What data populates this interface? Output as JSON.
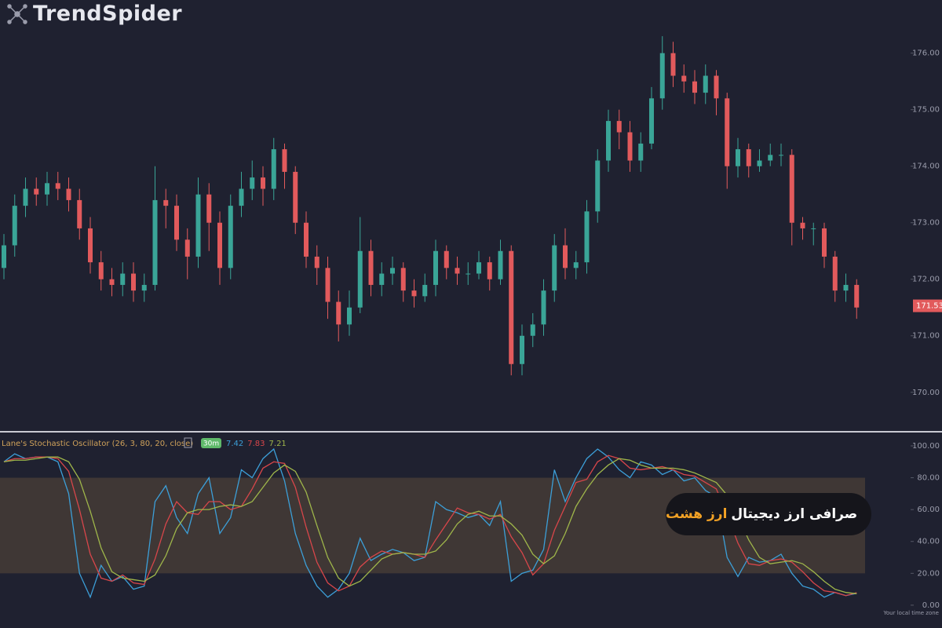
{
  "header": {
    "logo": "TrendSpider"
  },
  "banner": {
    "text": "صرافی ارز دیجیتال",
    "highlight": "ارز هشت"
  },
  "footer": {
    "note": "Your local time zone"
  },
  "chart_data": [
    {
      "type": "candlestick",
      "up_color": "#3aa597",
      "down_color": "#e25a5c",
      "open": [
        172.2,
        172.6,
        173.3,
        173.6,
        173.5,
        173.7,
        173.6,
        173.4,
        172.9,
        172.3,
        172.0,
        171.9,
        172.1,
        171.8,
        171.9,
        173.4,
        173.3,
        172.7,
        172.4,
        173.5,
        173.0,
        172.2,
        173.3,
        173.6,
        173.8,
        173.6,
        174.3,
        173.9,
        173.0,
        172.4,
        172.2,
        171.6,
        171.2,
        171.5,
        172.5,
        171.9,
        172.1,
        172.2,
        171.8,
        171.7,
        171.9,
        172.5,
        172.2,
        172.1,
        172.1,
        172.3,
        172.0,
        172.5,
        170.5,
        171.0,
        171.2,
        171.8,
        172.6,
        172.2,
        172.3,
        173.2,
        174.1,
        174.8,
        174.6,
        174.1,
        174.4,
        175.2,
        176.0,
        175.6,
        175.5,
        175.3,
        175.6,
        175.2,
        174.0,
        174.3,
        174.0,
        174.1,
        174.2,
        174.2,
        173.0,
        172.9,
        172.9,
        172.4,
        171.8,
        171.9
      ],
      "high": [
        172.8,
        173.5,
        173.8,
        173.8,
        173.9,
        173.9,
        173.8,
        173.6,
        173.1,
        172.5,
        172.2,
        172.3,
        172.3,
        172.1,
        174.0,
        173.6,
        173.5,
        172.9,
        173.8,
        173.7,
        173.2,
        173.5,
        173.9,
        174.1,
        174.0,
        174.5,
        174.4,
        174.0,
        173.2,
        172.6,
        172.4,
        171.8,
        171.8,
        173.1,
        172.7,
        172.3,
        172.4,
        172.3,
        172.0,
        172.1,
        172.7,
        172.6,
        172.4,
        172.3,
        172.5,
        172.4,
        172.7,
        172.6,
        171.2,
        171.4,
        172.0,
        172.8,
        172.9,
        172.5,
        173.4,
        174.3,
        175.0,
        175.0,
        174.8,
        174.6,
        175.4,
        176.3,
        176.2,
        175.8,
        175.7,
        175.8,
        175.7,
        175.3,
        174.5,
        174.4,
        174.3,
        174.4,
        174.4,
        174.3,
        173.1,
        173.0,
        173.0,
        172.5,
        172.1,
        172.0
      ],
      "low": [
        172.0,
        172.4,
        173.1,
        173.3,
        173.3,
        173.4,
        173.2,
        172.7,
        172.1,
        171.8,
        171.7,
        171.7,
        171.6,
        171.6,
        171.8,
        172.9,
        172.5,
        172.0,
        172.2,
        172.5,
        171.9,
        172.0,
        173.1,
        173.4,
        173.3,
        173.4,
        173.6,
        172.8,
        172.2,
        171.9,
        171.3,
        170.9,
        171.0,
        171.4,
        171.7,
        171.7,
        171.9,
        171.6,
        171.5,
        171.6,
        171.7,
        172.0,
        171.9,
        171.9,
        172.0,
        171.8,
        171.9,
        170.3,
        170.3,
        170.8,
        171.0,
        171.6,
        172.0,
        172.0,
        172.1,
        173.0,
        173.9,
        174.3,
        173.9,
        173.9,
        174.3,
        175.0,
        175.4,
        175.3,
        175.1,
        175.1,
        174.9,
        173.6,
        173.8,
        173.8,
        173.9,
        174.0,
        174.0,
        172.6,
        172.7,
        172.6,
        172.2,
        171.6,
        171.6,
        171.3
      ],
      "close": [
        172.6,
        173.3,
        173.6,
        173.5,
        173.7,
        173.6,
        173.4,
        172.9,
        172.3,
        172.0,
        171.9,
        172.1,
        171.8,
        171.9,
        173.4,
        173.3,
        172.7,
        172.4,
        173.5,
        173.0,
        172.2,
        173.3,
        173.6,
        173.8,
        173.6,
        174.3,
        173.9,
        173.0,
        172.4,
        172.2,
        171.6,
        171.2,
        171.5,
        172.5,
        171.9,
        172.1,
        172.2,
        171.8,
        171.7,
        171.9,
        172.5,
        172.2,
        172.1,
        172.1,
        172.3,
        172.0,
        172.5,
        170.5,
        171.0,
        171.2,
        171.8,
        172.6,
        172.2,
        172.3,
        173.2,
        174.1,
        174.8,
        174.6,
        174.1,
        174.4,
        175.2,
        176.0,
        175.6,
        175.5,
        175.3,
        175.6,
        175.2,
        174.0,
        174.3,
        174.0,
        174.1,
        174.2,
        174.2,
        173.0,
        172.9,
        172.9,
        172.4,
        171.8,
        171.9,
        171.5
      ],
      "last_price": {
        "value": 171.53,
        "label": "171.53"
      },
      "ylim": [
        169.33,
        176.94
      ],
      "yticks": [
        {
          "value": 170,
          "label": "170.00"
        },
        {
          "value": 171,
          "label": "171.00"
        },
        {
          "value": 172,
          "label": "172.00"
        },
        {
          "value": 173,
          "label": "173.00"
        },
        {
          "value": 174,
          "label": "174.00"
        },
        {
          "value": 175,
          "label": "175.00"
        },
        {
          "value": 176,
          "label": "176.00"
        }
      ]
    },
    {
      "type": "line",
      "title": "Lane's Stochastic Oscillator (26, 3, 80, 20, close)",
      "interval": "30m",
      "band": {
        "upper": 80,
        "lower": 20,
        "color": "#5a4a3a"
      },
      "series": [
        {
          "color": "#3c9fd8",
          "values": [
            90,
            95,
            92,
            93,
            93,
            90,
            70,
            20,
            5,
            25,
            15,
            18,
            10,
            12,
            65,
            75,
            55,
            45,
            70,
            80,
            45,
            55,
            85,
            80,
            92,
            98,
            78,
            45,
            25,
            12,
            5,
            10,
            20,
            42,
            28,
            32,
            35,
            33,
            28,
            30,
            65,
            60,
            58,
            55,
            57,
            50,
            65,
            15,
            20,
            22,
            35,
            85,
            65,
            80,
            92,
            98,
            93,
            85,
            80,
            90,
            88,
            82,
            85,
            78,
            80,
            72,
            68,
            30,
            18,
            30,
            27,
            28,
            32,
            20,
            12,
            10,
            5,
            8,
            6,
            7.42
          ]
        },
        {
          "color": "#d8464a",
          "values": [
            90,
            92,
            92,
            93,
            93,
            92,
            84,
            60,
            32,
            17,
            15,
            19,
            14,
            13,
            29,
            51,
            65,
            58,
            57,
            65,
            65,
            60,
            62,
            73,
            86,
            90,
            89,
            74,
            49,
            27,
            14,
            9,
            12,
            24,
            30,
            34,
            32,
            33,
            32,
            30,
            41,
            51,
            61,
            58,
            57,
            54,
            57,
            43,
            33,
            19,
            26,
            47,
            62,
            77,
            79,
            90,
            94,
            92,
            86,
            85,
            86,
            87,
            85,
            82,
            81,
            77,
            73,
            57,
            39,
            26,
            25,
            28,
            29,
            27,
            21,
            14,
            9,
            8,
            6,
            7.83
          ]
        },
        {
          "color": "#9fb64a",
          "values": [
            90,
            91,
            91,
            92,
            93,
            93,
            90,
            79,
            59,
            36,
            21,
            17,
            16,
            15,
            19,
            31,
            48,
            58,
            60,
            60,
            62,
            63,
            62,
            65,
            74,
            83,
            88,
            84,
            71,
            50,
            30,
            17,
            12,
            15,
            22,
            29,
            32,
            33,
            32,
            32,
            34,
            41,
            51,
            57,
            59,
            56,
            56,
            51,
            44,
            32,
            26,
            31,
            45,
            62,
            73,
            82,
            88,
            92,
            91,
            88,
            86,
            86,
            86,
            85,
            83,
            80,
            77,
            69,
            56,
            41,
            30,
            26,
            27,
            28,
            26,
            21,
            15,
            10,
            8,
            7.21
          ]
        }
      ],
      "ylim": [
        -9.4,
        106.4
      ],
      "yticks": [
        {
          "value": 0,
          "label": "0.00"
        },
        {
          "value": 20,
          "label": "20.00"
        },
        {
          "value": 40,
          "label": "40.00"
        },
        {
          "value": 60,
          "label": "60.00"
        },
        {
          "value": 80,
          "label": "80.00"
        },
        {
          "value": 100,
          "label": "100.00"
        }
      ]
    }
  ]
}
